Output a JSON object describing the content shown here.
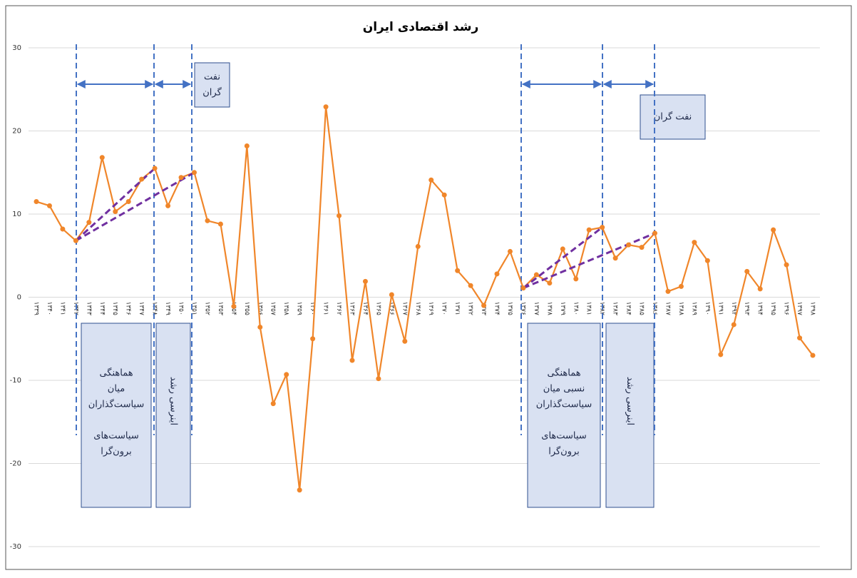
{
  "chart_data": {
    "type": "line",
    "title": "رشد اقتصادی ایران",
    "categories": [
      "۱۳۳۹",
      "۱۳۴۰",
      "۱۳۴۱",
      "۱۳۴۲",
      "۱۳۴۳",
      "۱۳۴۴",
      "۱۳۴۵",
      "۱۳۴۶",
      "۱۳۴۷",
      "۱۳۴۸",
      "۱۳۴۹",
      "۱۳۵۰",
      "۱۳۵۱",
      "۱۳۵۲",
      "۱۳۵۳",
      "۱۳۵۴",
      "۱۳۵۵",
      "۱۳۵۶",
      "۱۳۵۷",
      "۱۳۵۸",
      "۱۳۵۹",
      "۱۳۶۰",
      "۱۳۶۱",
      "۱۳۶۲",
      "۱۳۶۳",
      "۱۳۶۴",
      "۱۳۶۵",
      "۱۳۶۶",
      "۱۳۶۷",
      "۱۳۶۸",
      "۱۳۶۹",
      "۱۳۷۰",
      "۱۳۷۱",
      "۱۳۷۲",
      "۱۳۷۳",
      "۱۳۷۴",
      "۱۳۷۵",
      "۱۳۷۶",
      "۱۳۷۷",
      "۱۳۷۸",
      "۱۳۷۹",
      "۱۳۸۰",
      "۱۳۸۱",
      "۱۳۸۲",
      "۱۳۸۳",
      "۱۳۸۴",
      "۱۳۸۵",
      "۱۳۸۶",
      "۱۳۸۷",
      "۱۳۸۸",
      "۱۳۸۹",
      "۱۳۹۰",
      "۱۳۹۱",
      "۱۳۹۲",
      "۱۳۹۳",
      "۱۳۹۴",
      "۱۳۹۵",
      "۱۳۹۶",
      "۱۳۹۷",
      "۱۳۹۸"
    ],
    "values": [
      11.5,
      11,
      8.2,
      6.8,
      9,
      16.8,
      10.3,
      11.5,
      14.2,
      15.5,
      11,
      14.4,
      15,
      9.2,
      8.8,
      -1.1,
      18.2,
      -3.6,
      -12.8,
      -9.3,
      -23.2,
      -5,
      22.9,
      9.8,
      -7.6,
      1.9,
      -9.8,
      0.3,
      -5.3,
      6.1,
      14.1,
      12.3,
      3.2,
      1.4,
      -1,
      2.8,
      5.5,
      1.1,
      2.7,
      1.7,
      5.8,
      2.2,
      8.1,
      8.4,
      4.7,
      6.3,
      6,
      7.7,
      0.7,
      1.3,
      6.6,
      4.4,
      -6.9,
      -3.3,
      3.1,
      1,
      8.1,
      3.9,
      -4.9,
      -7
    ],
    "color": "#f0862a",
    "ylim": [
      -30,
      30
    ],
    "yticks": [
      30,
      20,
      10,
      0,
      -10,
      -20,
      -30
    ],
    "grid": true,
    "annotations": [
      {
        "lines": [
          "نفت",
          "گران"
        ]
      },
      {
        "lines": [
          "نفت گران"
        ]
      },
      {
        "lines": [
          "هماهنگی",
          "میان",
          "سیاست‌گذاران",
          "سیاست‌های",
          "برون‌گرا"
        ]
      },
      {
        "lines": [
          "اینرسی رشد"
        ]
      },
      {
        "lines": [
          "هماهنگی",
          "نسبی میان",
          "سیاست‌گذاران",
          "سیاست‌های",
          "برون‌گرا"
        ]
      },
      {
        "lines": [
          "اینرسی رشد"
        ]
      }
    ]
  }
}
